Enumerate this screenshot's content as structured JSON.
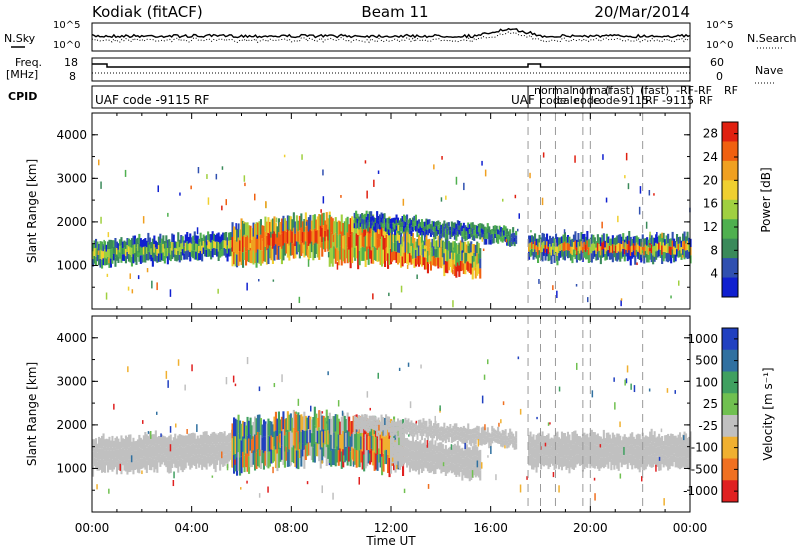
{
  "header": {
    "station": "Kodiak (fitACF)",
    "beam": "Beam 11",
    "date": "20/Mar/2014"
  },
  "strip": {
    "nsky_label": "N.Sky",
    "nsky_ticks": [
      "10^5",
      "10^0"
    ],
    "nsearch_label": "N.Search",
    "nsearch_ticks": [
      "10^5",
      "10^0"
    ],
    "freq_label": "Freq.",
    "freq_unit": "[MHz]",
    "freq_ticks": [
      "18",
      "8"
    ],
    "nave_label": "Nave",
    "nave_ticks": [
      "60",
      "0"
    ],
    "cpid_label": "CPID",
    "cpid_entries": [
      "UAF code -9115 RF",
      "UAF",
      "normal",
      "code",
      "cale",
      "code",
      "normal",
      "(fast)",
      "(fast)",
      "code",
      "-9115",
      "RF",
      "-RF",
      "-9115",
      "RF",
      "-RF",
      "RF"
    ]
  },
  "chart_data": [
    {
      "type": "heatmap",
      "title": "Power",
      "ylabel": "Slant Range [km]",
      "xlabel": "",
      "xlim": [
        0,
        24
      ],
      "ylim": [
        0,
        4500
      ],
      "yticks": [
        "1000",
        "2000",
        "3000",
        "4000"
      ],
      "colorbar": {
        "label": "Power [dB]",
        "ticks": [
          "4",
          "8",
          "12",
          "16",
          "20",
          "24",
          "28"
        ],
        "range": [
          0,
          30
        ],
        "colors": [
          "#1020d0",
          "#3050b0",
          "#3a8a5a",
          "#4fb04f",
          "#a0d040",
          "#f0d030",
          "#f0a020",
          "#f06010",
          "#e02010"
        ]
      },
      "features": [
        {
          "hours": [
            0.0,
            5.5
          ],
          "range_km": [
            1000,
            1700
          ],
          "level": "12-20 dB"
        },
        {
          "hours": [
            5.5,
            12.0
          ],
          "range_km": [
            900,
            2500
          ],
          "level": "20-30 dB"
        },
        {
          "hours": [
            12.0,
            15.5
          ],
          "range_km": [
            950,
            1700
          ],
          "level": "8-28 dB"
        },
        {
          "hours": [
            10.0,
            17.0
          ],
          "range_km": [
            1600,
            2200
          ],
          "level": "4-16 dB"
        },
        {
          "hours": [
            17.5,
            24.0
          ],
          "range_km": [
            1100,
            1700
          ],
          "level": "8-20 dB"
        }
      ]
    },
    {
      "type": "heatmap",
      "title": "Velocity",
      "ylabel": "Slant Range [km]",
      "xlabel": "Time UT",
      "xlim": [
        0,
        24
      ],
      "ylim": [
        0,
        4500
      ],
      "yticks": [
        "1000",
        "2000",
        "3000",
        "4000"
      ],
      "xticks": [
        "00:00",
        "04:00",
        "08:00",
        "12:00",
        "16:00",
        "20:00",
        "00:00"
      ],
      "colorbar": {
        "label": "Velocity [m s⁻¹]",
        "ticks": [
          "1000",
          "500",
          "100",
          "25",
          "-25",
          "-100",
          "-500",
          "-1000"
        ],
        "colors": [
          "#2040c0",
          "#3070a0",
          "#40a060",
          "#70c050",
          "#c0c0c0",
          "#f0b030",
          "#f07020",
          "#e02020"
        ]
      },
      "features": [
        {
          "hours": [
            0.0,
            5.5
          ],
          "range_km": [
            900,
            1800
          ],
          "level": "ground scatter (-25..25)"
        },
        {
          "hours": [
            5.5,
            12.5
          ],
          "range_km": [
            600,
            2500
          ],
          "level": "-500..1000"
        },
        {
          "hours": [
            12.0,
            15.5
          ],
          "range_km": [
            950,
            1700
          ],
          "level": "ground scatter"
        },
        {
          "hours": [
            10.0,
            17.0
          ],
          "range_km": [
            1600,
            2200
          ],
          "level": "ground scatter"
        },
        {
          "hours": [
            17.5,
            24.0
          ],
          "range_km": [
            900,
            1800
          ],
          "level": "ground scatter"
        }
      ]
    }
  ],
  "colors": {
    "axis": "#000000",
    "ground": "#c0c0c0"
  }
}
